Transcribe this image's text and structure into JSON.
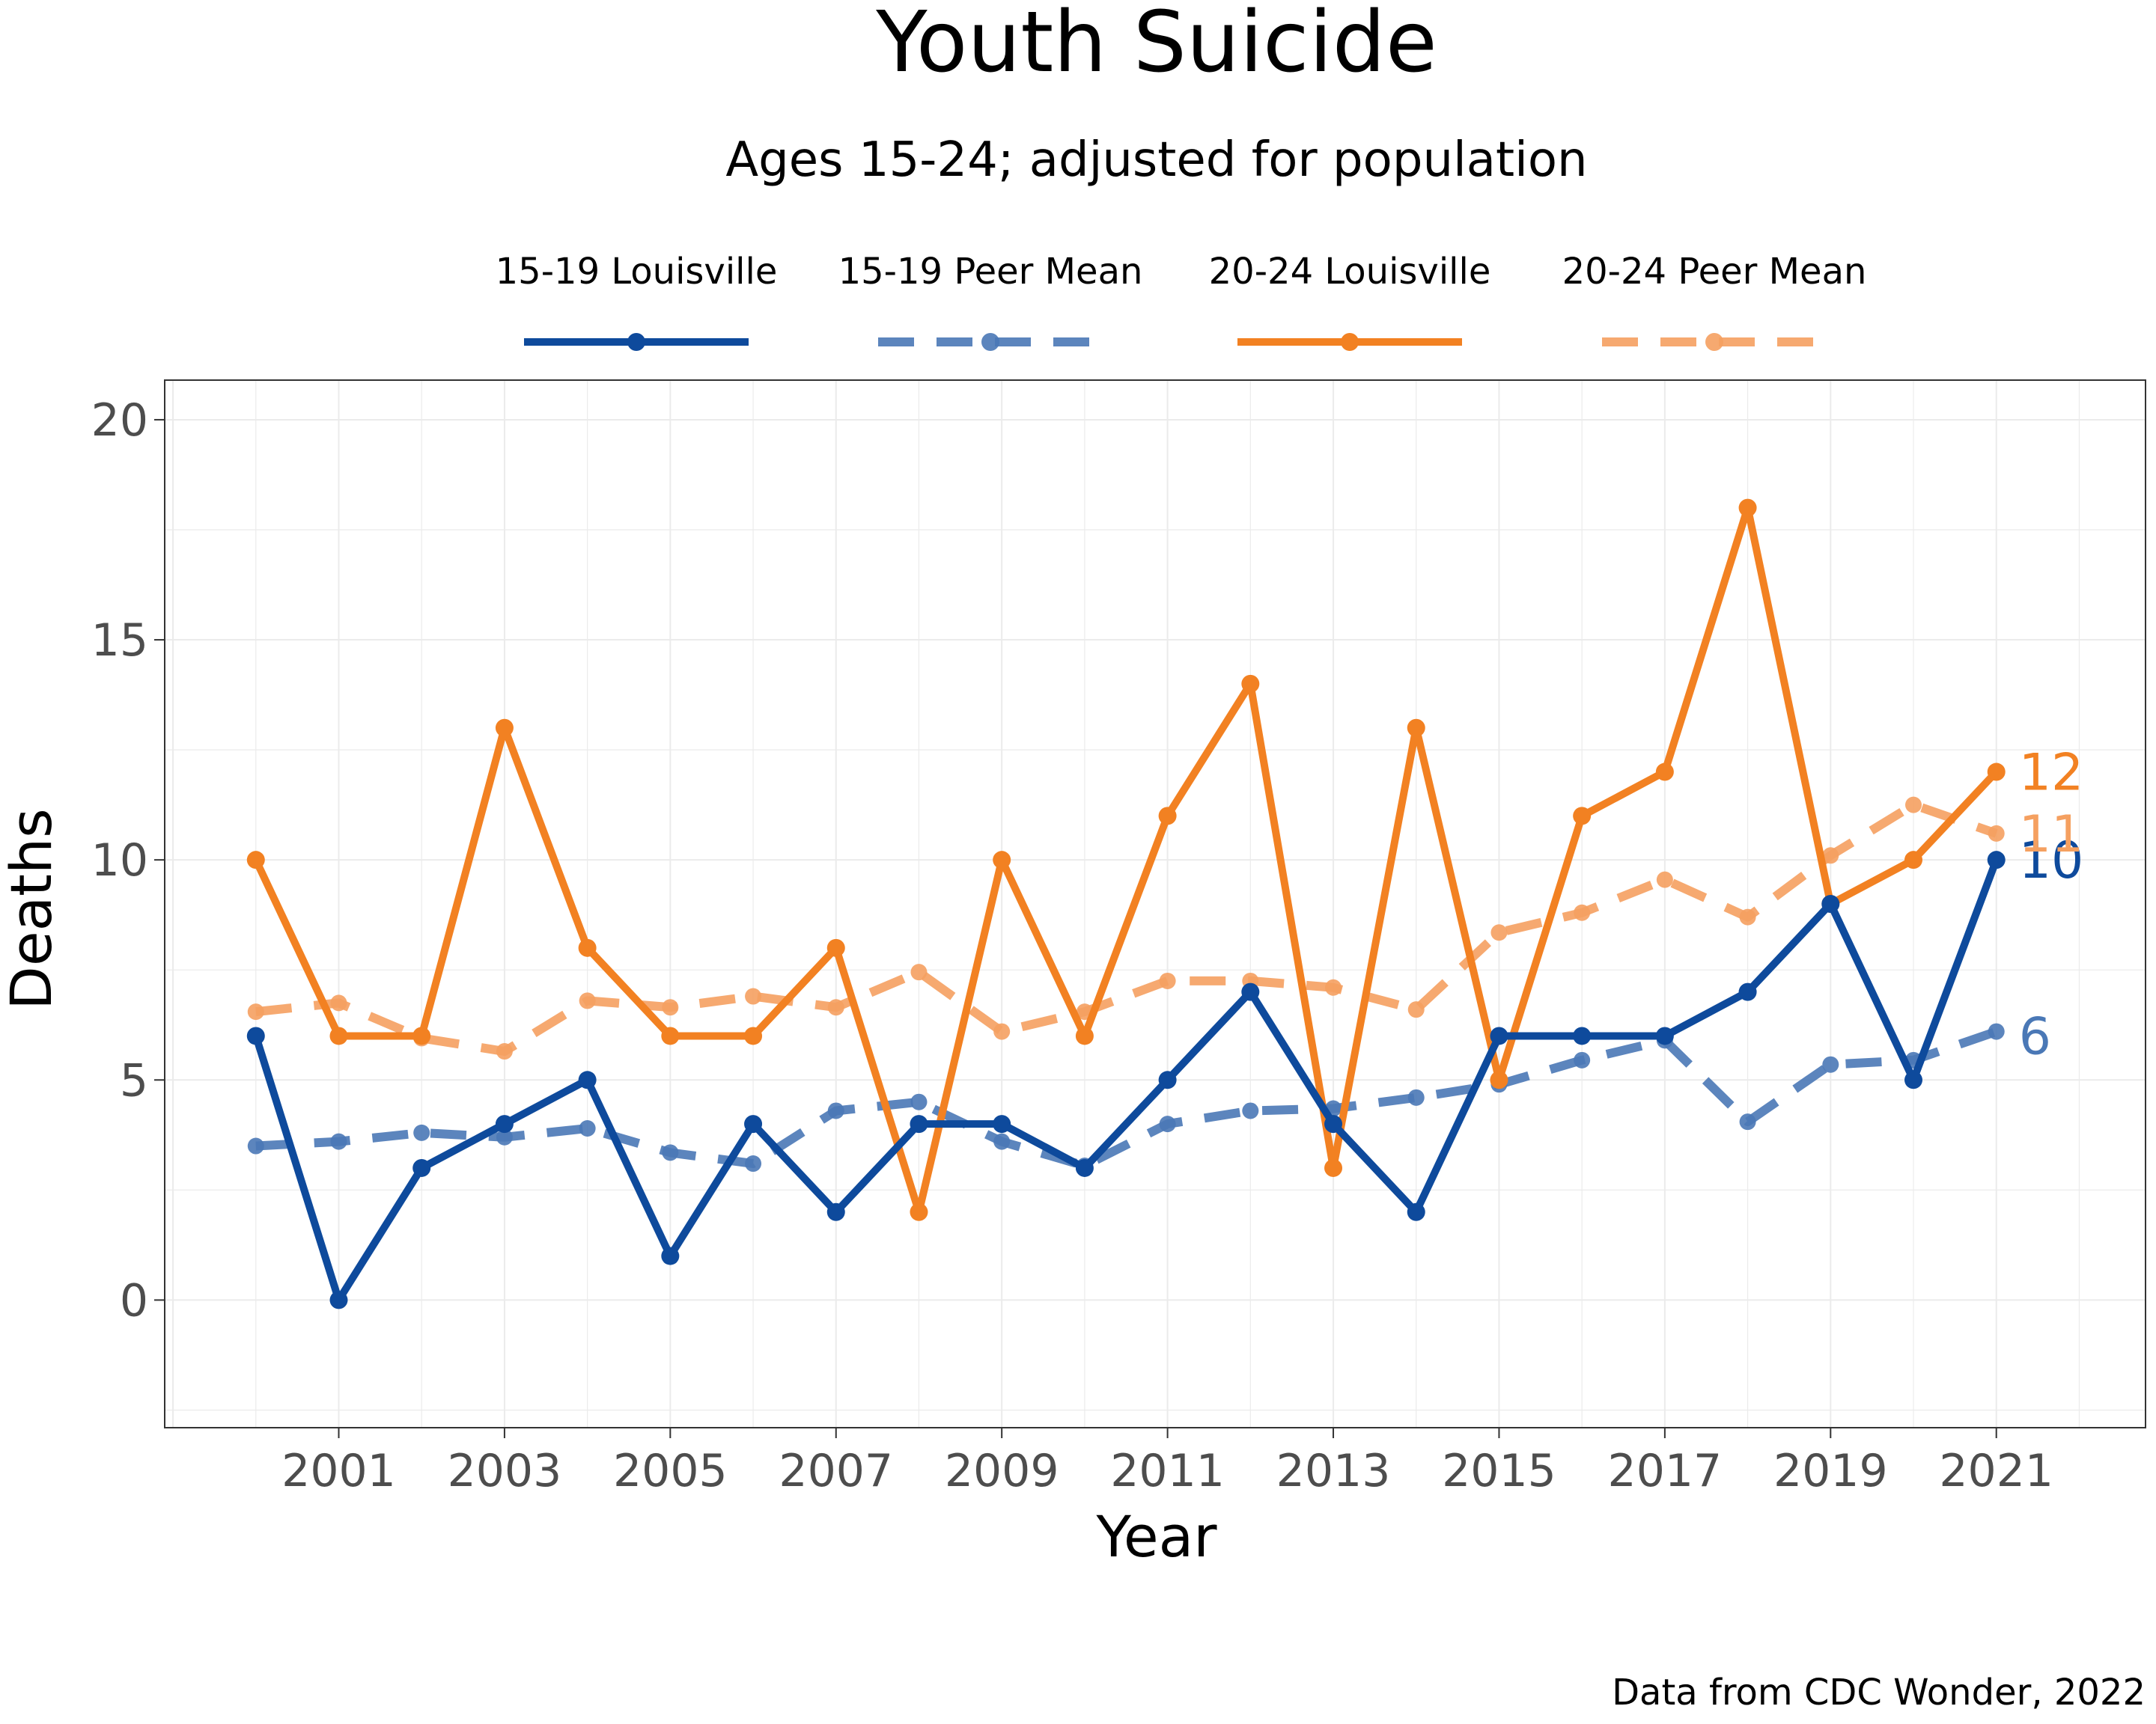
{
  "title": "Youth Suicide",
  "subtitle": "Ages 15-24; adjusted for population",
  "caption": "Data from CDC Wonder, 2022",
  "chart_data": {
    "type": "line",
    "title": "Youth Suicide",
    "subtitle": "Ages 15-24; adjusted for population",
    "xlabel": "Year",
    "ylabel": "Deaths",
    "xlim": [
      1998.9,
      2022.8
    ],
    "ylim": [
      -2.9,
      20.9
    ],
    "x_ticks": [
      2001,
      2003,
      2005,
      2007,
      2009,
      2011,
      2013,
      2015,
      2017,
      2019,
      2021
    ],
    "y_ticks": [
      0,
      5,
      10,
      15,
      20
    ],
    "grid": true,
    "legend_position": "top",
    "x": [
      2000,
      2001,
      2002,
      2003,
      2004,
      2005,
      2006,
      2007,
      2008,
      2009,
      2010,
      2011,
      2012,
      2013,
      2014,
      2015,
      2016,
      2017,
      2018,
      2019,
      2020,
      2021
    ],
    "series": [
      {
        "name": "15-19 Louisville",
        "color": "#0e4a9c",
        "style": "solid",
        "values": [
          6,
          0,
          3,
          4,
          5,
          1,
          4,
          2,
          4,
          4,
          3,
          5,
          7,
          4,
          2,
          6,
          6,
          6,
          7,
          9,
          5,
          10
        ],
        "end_label": "10"
      },
      {
        "name": "15-19 Peer Mean",
        "color": "#4a78b6",
        "style": "dashed",
        "values": [
          3.5,
          3.6,
          3.8,
          3.7,
          3.9,
          3.35,
          3.1,
          4.3,
          4.5,
          3.6,
          3.05,
          4.0,
          4.3,
          4.35,
          4.6,
          4.9,
          5.45,
          5.9,
          4.05,
          5.35,
          5.45,
          6.1
        ],
        "end_label": "6"
      },
      {
        "name": "20-24 Louisville",
        "color": "#f28122",
        "style": "solid",
        "values": [
          10,
          6,
          6,
          13,
          8,
          6,
          6,
          8,
          2,
          10,
          6,
          11,
          14,
          3,
          13,
          5,
          11,
          12,
          18,
          9,
          10,
          12
        ],
        "end_label": "12"
      },
      {
        "name": "20-24 Peer Mean",
        "color": "#f5a060",
        "style": "dashed",
        "values": [
          6.55,
          6.75,
          5.95,
          5.65,
          6.8,
          6.65,
          6.9,
          6.65,
          7.45,
          6.1,
          6.55,
          7.25,
          7.25,
          7.1,
          6.6,
          8.35,
          8.8,
          9.55,
          8.7,
          10.1,
          11.25,
          10.6
        ],
        "end_label": "11"
      }
    ]
  }
}
